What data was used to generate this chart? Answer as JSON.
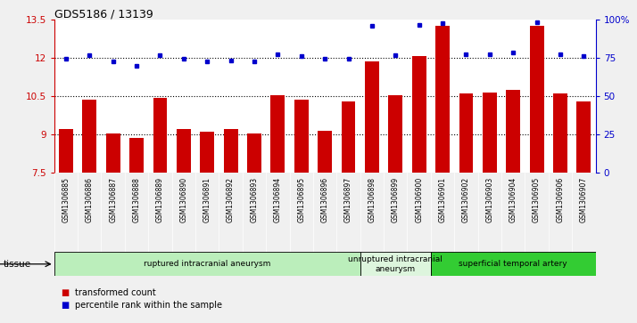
{
  "title": "GDS5186 / 13139",
  "samples": [
    "GSM1306885",
    "GSM1306886",
    "GSM1306887",
    "GSM1306888",
    "GSM1306889",
    "GSM1306890",
    "GSM1306891",
    "GSM1306892",
    "GSM1306893",
    "GSM1306894",
    "GSM1306895",
    "GSM1306896",
    "GSM1306897",
    "GSM1306898",
    "GSM1306899",
    "GSM1306900",
    "GSM1306901",
    "GSM1306902",
    "GSM1306903",
    "GSM1306904",
    "GSM1306905",
    "GSM1306906",
    "GSM1306907"
  ],
  "bar_values": [
    9.2,
    10.35,
    9.05,
    8.85,
    10.42,
    9.2,
    9.1,
    9.2,
    9.05,
    10.55,
    10.35,
    9.15,
    10.3,
    11.85,
    10.55,
    12.05,
    13.25,
    10.6,
    10.65,
    10.75,
    13.25,
    10.6,
    10.3
  ],
  "dot_values": [
    11.95,
    12.1,
    11.85,
    11.7,
    12.1,
    11.95,
    11.85,
    11.9,
    11.85,
    12.15,
    12.05,
    11.95,
    11.95,
    13.25,
    12.1,
    13.3,
    13.35,
    12.15,
    12.15,
    12.2,
    13.4,
    12.15,
    12.05
  ],
  "bar_color": "#cc0000",
  "dot_color": "#0000cc",
  "ylim_left": [
    7.5,
    13.5
  ],
  "ylim_right": [
    0,
    100
  ],
  "yticks_left": [
    7.5,
    9.0,
    10.5,
    12.0,
    13.5
  ],
  "yticks_left_labels": [
    "7.5",
    "9",
    "10.5",
    "12",
    "13.5"
  ],
  "yticks_right": [
    0,
    25,
    50,
    75,
    100
  ],
  "yticks_right_labels": [
    "0",
    "25",
    "50",
    "75",
    "100%"
  ],
  "hlines": [
    9.0,
    10.5,
    12.0
  ],
  "groups": [
    {
      "label": "ruptured intracranial aneurysm",
      "start": 0,
      "end": 13,
      "color": "#bbeebb"
    },
    {
      "label": "unruptured intracranial\naneurysm",
      "start": 13,
      "end": 16,
      "color": "#ddf5dd"
    },
    {
      "label": "superficial temporal artery",
      "start": 16,
      "end": 23,
      "color": "#33cc33"
    }
  ],
  "tissue_label": "tissue",
  "legend_bar_label": "transformed count",
  "legend_dot_label": "percentile rank within the sample",
  "fig_bg_color": "#f0f0f0",
  "xticklabel_bg": "#d8d8d8"
}
